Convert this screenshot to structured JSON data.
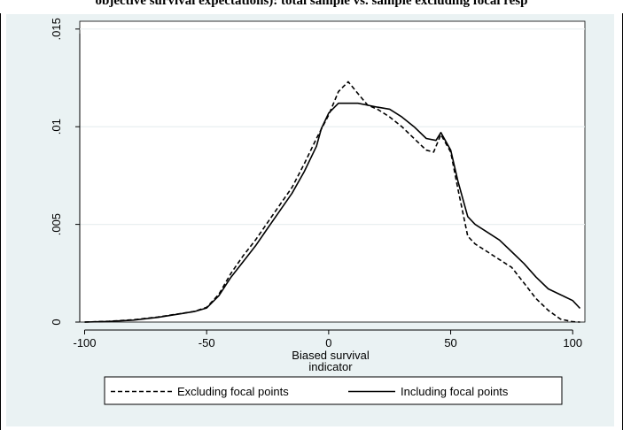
{
  "caption": "objective survival expectations): total sample vs. sample excluding focal resp",
  "chart_data": {
    "type": "line",
    "xlabel_lines": [
      "Biased survival",
      "indicator"
    ],
    "ylabel": "",
    "xlim": [
      -102,
      105
    ],
    "ylim": [
      0,
      0.0154
    ],
    "x_ticks": [
      -100,
      -50,
      0,
      50,
      100
    ],
    "x_tick_labels": [
      "-100",
      "-50",
      "0",
      "50",
      "100"
    ],
    "y_ticks": [
      0,
      0.005,
      0.01,
      0.015
    ],
    "y_tick_labels": [
      "0",
      ".005",
      ".01",
      ".015"
    ],
    "grid": true,
    "legend_position": "bottom",
    "colors": {
      "plot_background": "#ffffff",
      "outer_background": "#eaf2f3",
      "grid": "#e9eff0",
      "line": "#000000"
    },
    "series": [
      {
        "name": "Excluding focal points",
        "dash": "dashed",
        "x": [
          -100,
          -90,
          -80,
          -70,
          -60,
          -55,
          -50,
          -45,
          -40,
          -35,
          -30,
          -25,
          -20,
          -15,
          -10,
          -5,
          0,
          4,
          8,
          12,
          16,
          20,
          25,
          30,
          35,
          40,
          43,
          46,
          50,
          53,
          57,
          60,
          65,
          70,
          75,
          80,
          85,
          90,
          95,
          100,
          103
        ],
        "y": [
          0.0,
          4e-05,
          0.00012,
          0.00026,
          0.00045,
          0.00055,
          0.00075,
          0.00142,
          0.0025,
          0.0034,
          0.0042,
          0.0051,
          0.006,
          0.0069,
          0.0081,
          0.0094,
          0.0106,
          0.0118,
          0.0123,
          0.0117,
          0.0111,
          0.0109,
          0.0105,
          0.01,
          0.0094,
          0.0088,
          0.0087,
          0.0096,
          0.0087,
          0.0068,
          0.0044,
          0.004,
          0.0036,
          0.0032,
          0.0028,
          0.002,
          0.0012,
          0.0006,
          0.00015,
          2e-05,
          0.0
        ]
      },
      {
        "name": "Including focal points",
        "dash": "solid",
        "x": [
          -100,
          -90,
          -80,
          -70,
          -60,
          -55,
          -50,
          -45,
          -40,
          -35,
          -30,
          -25,
          -20,
          -15,
          -10,
          -5,
          -3,
          0,
          4,
          8,
          12,
          16,
          20,
          25,
          30,
          35,
          40,
          44,
          46,
          50,
          53,
          57,
          60,
          65,
          70,
          75,
          80,
          85,
          90,
          95,
          100,
          103
        ],
        "y": [
          0.0,
          3e-05,
          0.0001,
          0.00024,
          0.00044,
          0.00054,
          0.00072,
          0.00135,
          0.0023,
          0.0031,
          0.0039,
          0.0048,
          0.0057,
          0.0066,
          0.0077,
          0.009,
          0.0099,
          0.0107,
          0.0112,
          0.0112,
          0.0112,
          0.0111,
          0.011,
          0.0109,
          0.0105,
          0.01,
          0.0094,
          0.0093,
          0.0097,
          0.0088,
          0.0072,
          0.0054,
          0.005,
          0.0046,
          0.0042,
          0.0036,
          0.003,
          0.0023,
          0.0017,
          0.0014,
          0.0011,
          0.0007
        ]
      }
    ]
  }
}
